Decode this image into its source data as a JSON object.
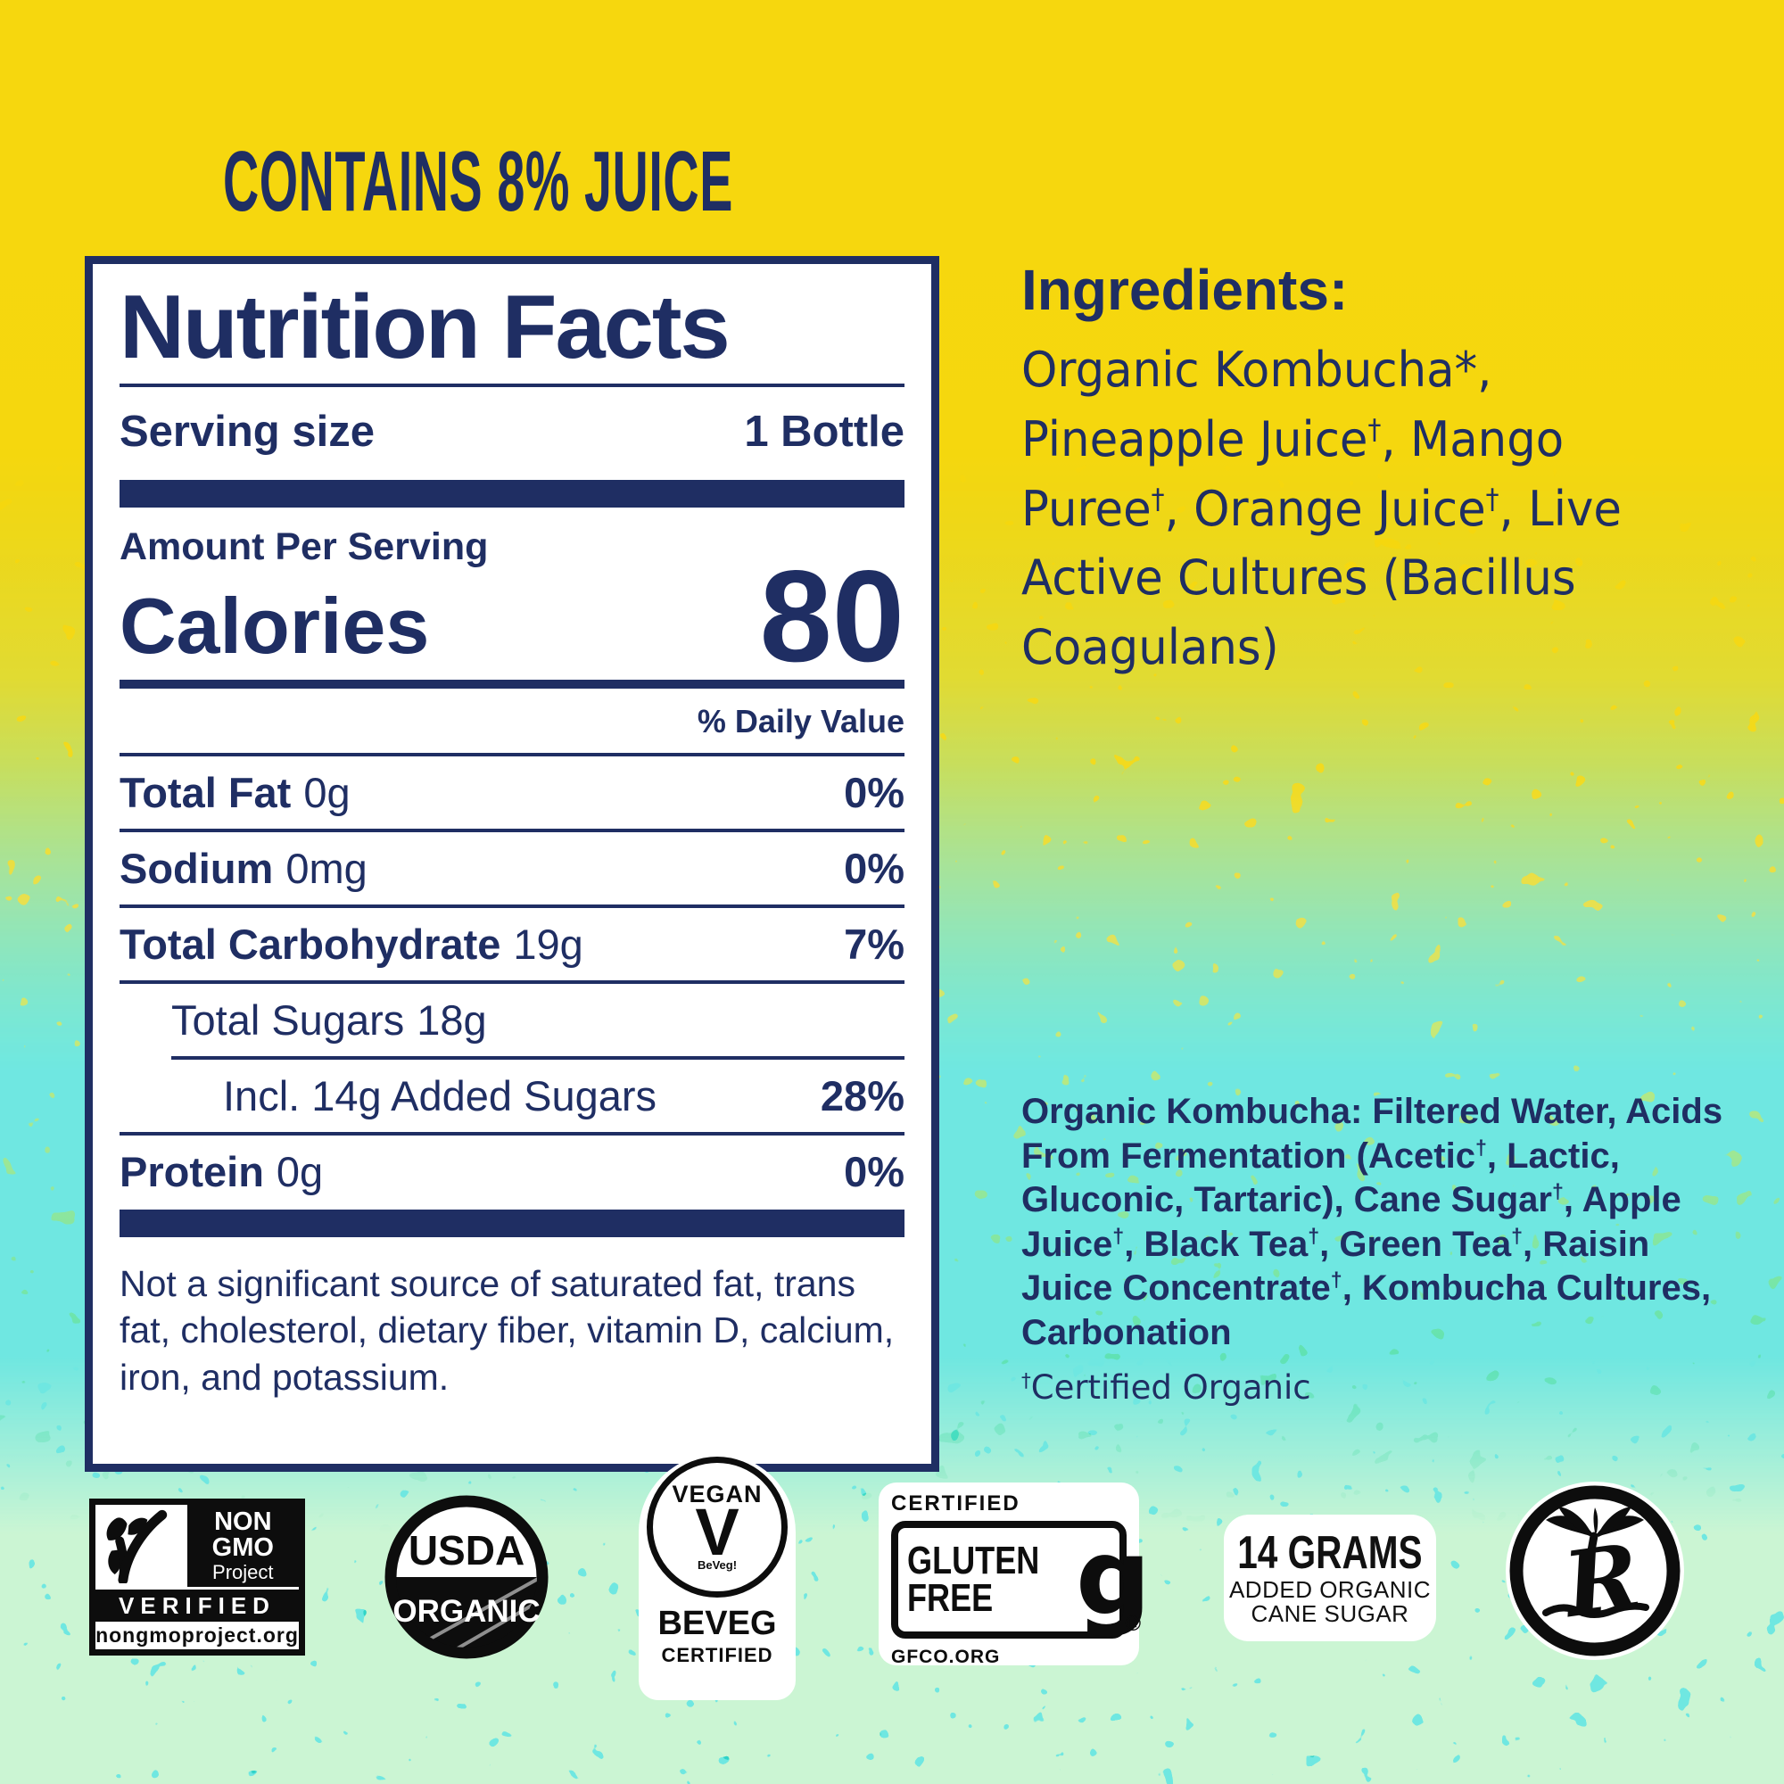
{
  "colors": {
    "navy": "#1f2e63",
    "yellow": "#f6d70e",
    "teal": "#2ed3c6",
    "mint": "#9ae8a5",
    "badge_black": "#0d0d0d",
    "panel_bg": "#ffffff"
  },
  "header": {
    "juice_claim": "CONTAINS 8% JUICE"
  },
  "nutrition_panel": {
    "title": "Nutrition Facts",
    "serving_size_label": "Serving size",
    "serving_size_value": "1 Bottle",
    "amount_per_serving": "Amount Per Serving",
    "calories_label": "Calories",
    "calories_value": "80",
    "daily_value_header": "% Daily Value",
    "rows": [
      {
        "name": "Total Fat",
        "amount": "0g",
        "dv": "0%"
      },
      {
        "name": "Sodium",
        "amount": "0mg",
        "dv": "0%"
      },
      {
        "name": "Total Carbohydrate",
        "amount": "19g",
        "dv": "7%"
      },
      {
        "name": "Total Sugars",
        "amount": "18g",
        "dv": ""
      },
      {
        "name": "Incl. 14g Added Sugars",
        "amount": "",
        "dv": "28%"
      },
      {
        "name": "Protein",
        "amount": "0g",
        "dv": "0%"
      }
    ],
    "footnote": "Not a significant source of saturated fat, trans fat, cholesterol, dietary fiber, vitamin D, calcium, iron, and potassium."
  },
  "ingredients": {
    "heading": "Ingredients:",
    "list": "Organic Kombucha*, Pineapple Juice†, Mango Puree†, Orange Juice†, Live Active Cultures (Bacillus Coagulans)"
  },
  "kombucha_detail": {
    "text": "Organic Kombucha: Filtered Water, Acids From Fermentation (Acetic†, Lactic, Gluconic, Tartaric), Cane Sugar†, Apple Juice†, Black Tea†, Green Tea†, Raisin Juice Concentrate†, Kombucha Cultures, Carbonation",
    "certified": "†Certified Organic"
  },
  "badges": {
    "non_gmo": {
      "word1": "NON",
      "word2": "GMO",
      "word3": "Project",
      "verified": "VERIFIED",
      "url": "nongmoproject.org"
    },
    "usda": {
      "top": "USDA",
      "bottom": "ORGANIC"
    },
    "vegan": {
      "title": "VEGAN",
      "v_glyph": "V",
      "beveg_small": "BeVeg!",
      "name": "BeVeg",
      "certified": "CERTIFIED"
    },
    "gluten_free": {
      "certified": "CERTIFIED",
      "word1": "GLUTEN",
      "word2": "FREE",
      "glyph": "g",
      "registered": "®",
      "url": "GFCO.ORG"
    },
    "cane_sugar": {
      "line1": "14 GRAMS",
      "line2": "ADDED ORGANIC",
      "line3": "CANE SUGAR"
    },
    "brand": {
      "monogram": "R"
    }
  }
}
